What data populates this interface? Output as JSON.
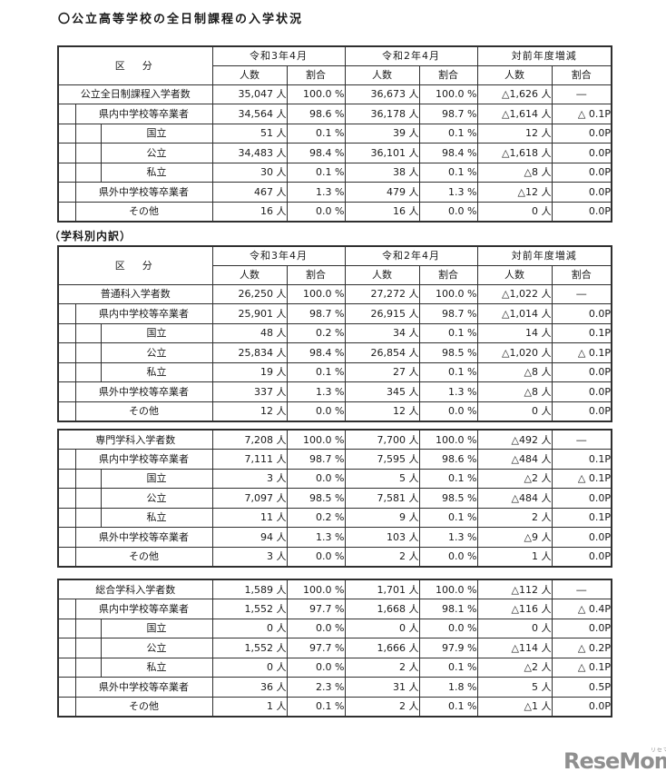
{
  "page_title": "〇公立高等学校の全日制課程の入学状況",
  "section_label": "（学科別内訳）",
  "table_header": {
    "kubun": "区　分",
    "groups": [
      {
        "label": "令和3年4月",
        "sub": [
          "人数",
          "割合"
        ]
      },
      {
        "label": "令和2年4月",
        "sub": [
          "人数",
          "割合"
        ]
      },
      {
        "label": "対前年度増減",
        "sub": [
          "人数",
          "割合"
        ]
      }
    ]
  },
  "tables": [
    {
      "id": "overall",
      "has_header": true,
      "rows": [
        {
          "label": "公立全日制課程入学者数",
          "indent": 0,
          "cells": [
            "35,047 人",
            "100.0 %",
            "36,673 人",
            "100.0 %",
            "△1,626 人",
            "―"
          ]
        },
        {
          "label": "県内中学校等卒業者",
          "indent": 1,
          "cells": [
            "34,564 人",
            "98.6 %",
            "36,178 人",
            "98.7 %",
            "△1,614 人",
            "△ 0.1P"
          ]
        },
        {
          "label": "国立",
          "indent": 2,
          "cells": [
            "51 人",
            "0.1 %",
            "39 人",
            "0.1 %",
            "12 人",
            "0.0P"
          ]
        },
        {
          "label": "公立",
          "indent": 2,
          "cells": [
            "34,483 人",
            "98.4 %",
            "36,101 人",
            "98.4 %",
            "△1,618 人",
            "0.0P"
          ]
        },
        {
          "label": "私立",
          "indent": 2,
          "cells": [
            "30 人",
            "0.1 %",
            "38 人",
            "0.1 %",
            "△8 人",
            "0.0P"
          ]
        },
        {
          "label": "県外中学校等卒業者",
          "indent": 1,
          "cells": [
            "467 人",
            "1.3 %",
            "479 人",
            "1.3 %",
            "△12 人",
            "0.0P"
          ]
        },
        {
          "label": "その他",
          "indent": 1,
          "cells": [
            "16 人",
            "0.0 %",
            "16 人",
            "0.0 %",
            "0 人",
            "0.0P"
          ]
        }
      ]
    },
    {
      "id": "futsuka",
      "has_header": true,
      "rows": [
        {
          "label": "普通科入学者数",
          "indent": 0,
          "cells": [
            "26,250 人",
            "100.0 %",
            "27,272 人",
            "100.0 %",
            "△1,022 人",
            "―"
          ]
        },
        {
          "label": "県内中学校等卒業者",
          "indent": 1,
          "cells": [
            "25,901 人",
            "98.7 %",
            "26,915 人",
            "98.7 %",
            "△1,014 人",
            "0.0P"
          ]
        },
        {
          "label": "国立",
          "indent": 2,
          "cells": [
            "48 人",
            "0.2 %",
            "34 人",
            "0.1 %",
            "14 人",
            "0.1P"
          ]
        },
        {
          "label": "公立",
          "indent": 2,
          "cells": [
            "25,834 人",
            "98.4 %",
            "26,854 人",
            "98.5 %",
            "△1,020 人",
            "△ 0.1P"
          ]
        },
        {
          "label": "私立",
          "indent": 2,
          "cells": [
            "19 人",
            "0.1 %",
            "27 人",
            "0.1 %",
            "△8 人",
            "0.0P"
          ]
        },
        {
          "label": "県外中学校等卒業者",
          "indent": 1,
          "cells": [
            "337 人",
            "1.3 %",
            "345 人",
            "1.3 %",
            "△8 人",
            "0.0P"
          ]
        },
        {
          "label": "その他",
          "indent": 1,
          "cells": [
            "12 人",
            "0.0 %",
            "12 人",
            "0.0 %",
            "0 人",
            "0.0P"
          ]
        }
      ]
    },
    {
      "id": "senmon",
      "has_header": false,
      "rows": [
        {
          "label": "専門学科入学者数",
          "indent": 0,
          "cells": [
            "7,208 人",
            "100.0 %",
            "7,700 人",
            "100.0 %",
            "△492 人",
            "―"
          ]
        },
        {
          "label": "県内中学校等卒業者",
          "indent": 1,
          "cells": [
            "7,111 人",
            "98.7 %",
            "7,595 人",
            "98.6 %",
            "△484 人",
            "0.1P"
          ]
        },
        {
          "label": "国立",
          "indent": 2,
          "cells": [
            "3 人",
            "0.0 %",
            "5 人",
            "0.1 %",
            "△2 人",
            "△ 0.1P"
          ]
        },
        {
          "label": "公立",
          "indent": 2,
          "cells": [
            "7,097 人",
            "98.5 %",
            "7,581 人",
            "98.5 %",
            "△484 人",
            "0.0P"
          ]
        },
        {
          "label": "私立",
          "indent": 2,
          "cells": [
            "11 人",
            "0.2 %",
            "9 人",
            "0.1 %",
            "2 人",
            "0.1P"
          ]
        },
        {
          "label": "県外中学校等卒業者",
          "indent": 1,
          "cells": [
            "94 人",
            "1.3 %",
            "103 人",
            "1.3 %",
            "△9 人",
            "0.0P"
          ]
        },
        {
          "label": "その他",
          "indent": 1,
          "cells": [
            "3 人",
            "0.0 %",
            "2 人",
            "0.0 %",
            "1 人",
            "0.0P"
          ]
        }
      ]
    },
    {
      "id": "sogo",
      "has_header": false,
      "rows": [
        {
          "label": "総合学科入学者数",
          "indent": 0,
          "cells": [
            "1,589 人",
            "100.0 %",
            "1,701 人",
            "100.0 %",
            "△112 人",
            "―"
          ]
        },
        {
          "label": "県内中学校等卒業者",
          "indent": 1,
          "cells": [
            "1,552 人",
            "97.7 %",
            "1,668 人",
            "98.1 %",
            "△116 人",
            "△ 0.4P"
          ]
        },
        {
          "label": "国立",
          "indent": 2,
          "cells": [
            "0 人",
            "0.0 %",
            "0 人",
            "0.0 %",
            "0 人",
            "0.0P"
          ]
        },
        {
          "label": "公立",
          "indent": 2,
          "cells": [
            "1,552 人",
            "97.7 %",
            "1,666 人",
            "97.9 %",
            "△114 人",
            "△ 0.2P"
          ]
        },
        {
          "label": "私立",
          "indent": 2,
          "cells": [
            "0 人",
            "0.0 %",
            "2 人",
            "0.1 %",
            "△2 人",
            "△ 0.1P"
          ]
        },
        {
          "label": "県外中学校等卒業者",
          "indent": 1,
          "cells": [
            "36 人",
            "2.3 %",
            "31 人",
            "1.8 %",
            "5 人",
            "0.5P"
          ]
        },
        {
          "label": "その他",
          "indent": 1,
          "cells": [
            "1 人",
            "0.1 %",
            "2 人",
            "0.1 %",
            "△1 人",
            "0.0P"
          ]
        }
      ]
    }
  ],
  "logo": {
    "text": "ReseMom.",
    "ruby": "リセマム",
    "color": "#8f8f8f"
  }
}
